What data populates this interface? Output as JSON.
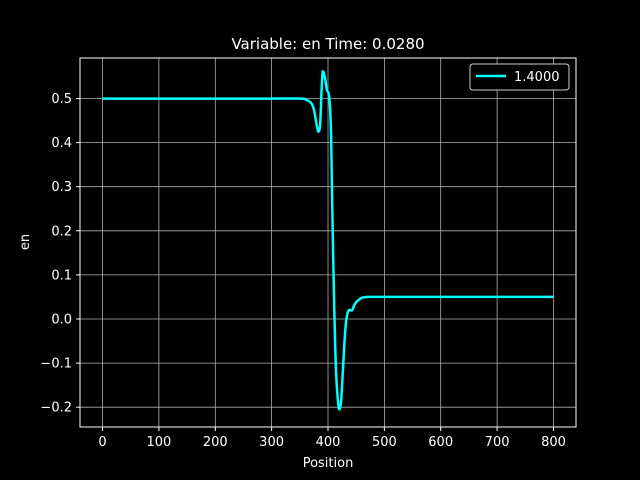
{
  "chart_data": {
    "type": "line",
    "title": "Variable: en Time: 0.0280",
    "xlabel": "Position",
    "ylabel": "en",
    "xlim": [
      -40,
      840
    ],
    "ylim": [
      -0.245,
      0.592
    ],
    "xticks": [
      0,
      100,
      200,
      300,
      400,
      500,
      600,
      700,
      800
    ],
    "yticks": [
      -0.2,
      -0.1,
      0.0,
      0.1,
      0.2,
      0.3,
      0.4,
      0.5
    ],
    "ytick_labels": [
      "−0.2",
      "−0.1",
      "0.0",
      "0.1",
      "0.2",
      "0.3",
      "0.4",
      "0.5"
    ],
    "grid": true,
    "legend_position": "top-right",
    "series": [
      {
        "name": "1.4000",
        "color": "#00ffff",
        "x": [
          0,
          100,
          200,
          300,
          350,
          360,
          370,
          375,
          380,
          383,
          386,
          388,
          390,
          392,
          395,
          398,
          402,
          405,
          407,
          409,
          411,
          413,
          415,
          418,
          420,
          423,
          425,
          428,
          431,
          434,
          437,
          440,
          443,
          446,
          450,
          455,
          460,
          470,
          480,
          500,
          600,
          700,
          800
        ],
        "y": [
          0.5,
          0.5,
          0.5,
          0.5,
          0.5,
          0.498,
          0.49,
          0.475,
          0.44,
          0.425,
          0.44,
          0.5,
          0.555,
          0.56,
          0.545,
          0.52,
          0.505,
          0.44,
          0.3,
          0.15,
          0.03,
          -0.07,
          -0.14,
          -0.19,
          -0.205,
          -0.19,
          -0.15,
          -0.08,
          -0.02,
          0.01,
          0.02,
          0.02,
          0.02,
          0.03,
          0.038,
          0.044,
          0.048,
          0.05,
          0.05,
          0.05,
          0.05,
          0.05,
          0.05
        ]
      }
    ]
  }
}
